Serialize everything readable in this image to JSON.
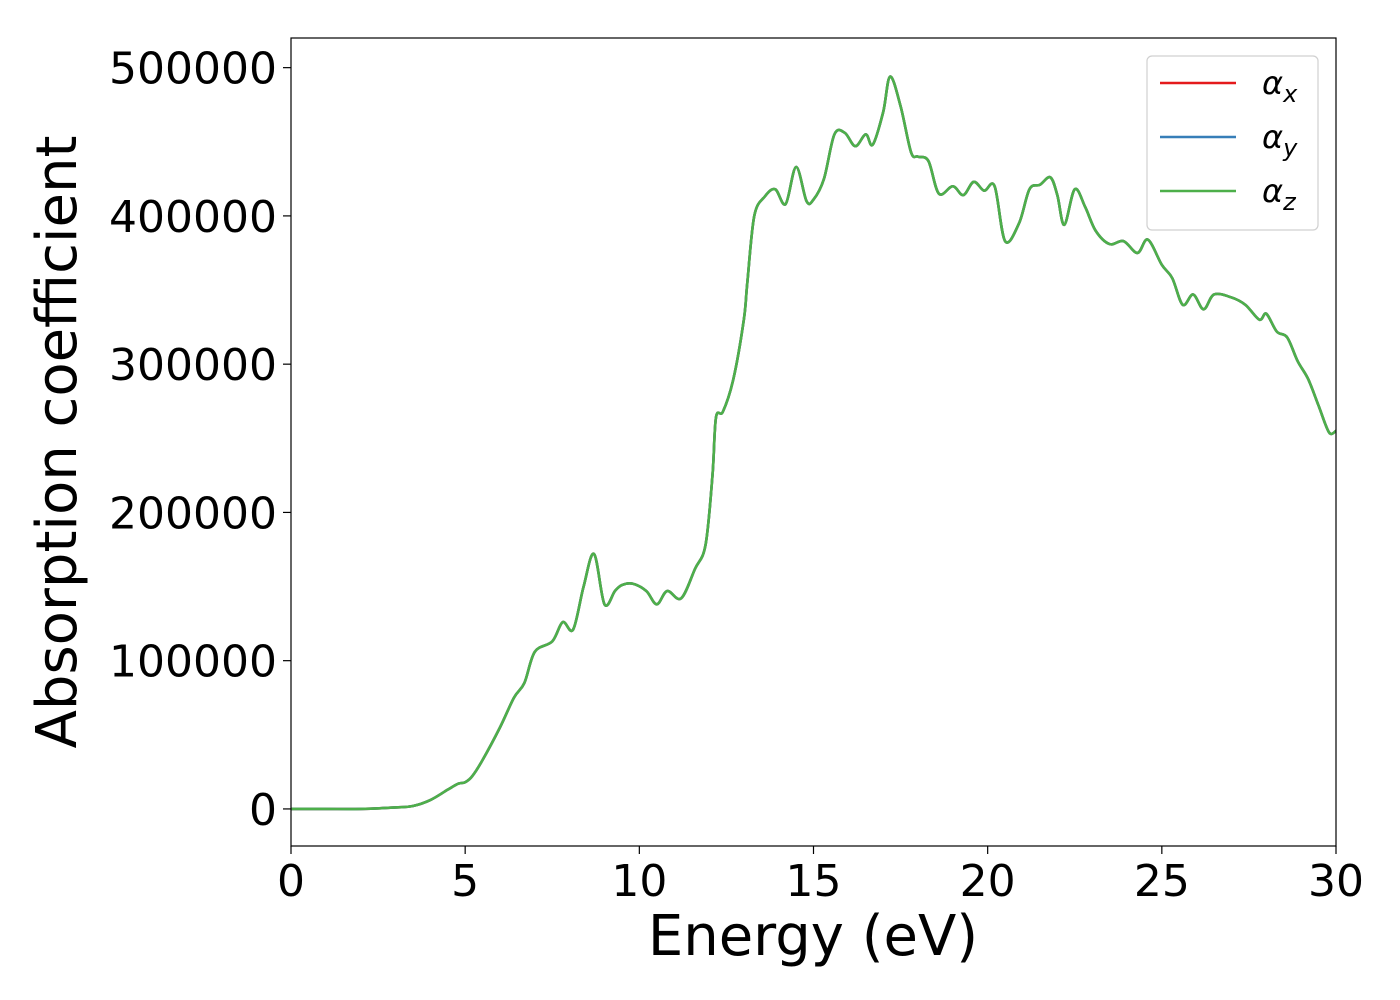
{
  "chart_data": {
    "type": "line",
    "xlabel": "Energy (eV)",
    "ylabel": "Absorption coefficient",
    "xlim": [
      0,
      30
    ],
    "ylim": [
      -25000,
      520000
    ],
    "xticks": [
      0,
      5,
      10,
      15,
      20,
      25,
      30
    ],
    "yticks": [
      0,
      100000,
      200000,
      300000,
      400000,
      500000
    ],
    "grid": false,
    "legend_position": "top-right",
    "x": [
      0,
      1,
      2,
      3,
      3.5,
      4,
      4.5,
      4.8,
      5.0,
      5.2,
      5.5,
      6.0,
      6.4,
      6.7,
      7.0,
      7.5,
      7.8,
      8.1,
      8.4,
      8.7,
      9.0,
      9.3,
      9.5,
      9.8,
      10.2,
      10.5,
      10.8,
      11.2,
      11.6,
      11.9,
      12.1,
      12.2,
      12.4,
      12.7,
      13.0,
      13.1,
      13.3,
      13.6,
      13.9,
      14.2,
      14.5,
      14.8,
      15.0,
      15.3,
      15.6,
      15.9,
      16.2,
      16.5,
      16.7,
      17.0,
      17.2,
      17.5,
      17.8,
      18.0,
      18.3,
      18.6,
      19.0,
      19.3,
      19.6,
      19.9,
      20.2,
      20.5,
      20.9,
      21.2,
      21.5,
      21.8,
      22.0,
      22.2,
      22.5,
      22.8,
      23.1,
      23.5,
      23.9,
      24.3,
      24.6,
      25.0,
      25.3,
      25.6,
      25.9,
      26.2,
      26.5,
      27.0,
      27.4,
      27.8,
      28.0,
      28.3,
      28.6,
      28.9,
      29.2,
      29.5,
      29.8,
      30.0
    ],
    "series": [
      {
        "name": "α_x",
        "color": "#e41a1c",
        "values": [
          0,
          0,
          0,
          1000,
          2000,
          6000,
          13000,
          17000,
          18000,
          22000,
          33000,
          55000,
          75000,
          85000,
          106000,
          113000,
          126000,
          121000,
          150000,
          172000,
          138000,
          147000,
          151000,
          152000,
          147000,
          138000,
          147000,
          142000,
          162000,
          178000,
          225000,
          264000,
          268000,
          290000,
          330000,
          355000,
          400000,
          413000,
          418000,
          408000,
          433000,
          410000,
          411000,
          425000,
          455000,
          456000,
          447000,
          455000,
          448000,
          470000,
          494000,
          474000,
          443000,
          440000,
          437000,
          415000,
          420000,
          414000,
          423000,
          417000,
          420000,
          383000,
          395000,
          418000,
          421000,
          426000,
          414000,
          394000,
          418000,
          406000,
          390000,
          381000,
          383000,
          375000,
          384000,
          367000,
          358000,
          340000,
          347000,
          337000,
          347000,
          345000,
          340000,
          330000,
          334000,
          322000,
          318000,
          302000,
          290000,
          272000,
          254000,
          255000
        ]
      },
      {
        "name": "α_y",
        "color": "#377eb8",
        "values": [
          0,
          0,
          0,
          1000,
          2000,
          6000,
          13000,
          17000,
          18000,
          22000,
          33000,
          55000,
          75000,
          85000,
          106000,
          113000,
          126000,
          121000,
          150000,
          172000,
          138000,
          147000,
          151000,
          152000,
          147000,
          138000,
          147000,
          142000,
          162000,
          178000,
          225000,
          264000,
          268000,
          290000,
          330000,
          355000,
          400000,
          413000,
          418000,
          408000,
          433000,
          410000,
          411000,
          425000,
          455000,
          456000,
          447000,
          455000,
          448000,
          470000,
          494000,
          474000,
          443000,
          440000,
          437000,
          415000,
          420000,
          414000,
          423000,
          417000,
          420000,
          383000,
          395000,
          418000,
          421000,
          426000,
          414000,
          394000,
          418000,
          406000,
          390000,
          381000,
          383000,
          375000,
          384000,
          367000,
          358000,
          340000,
          347000,
          337000,
          347000,
          345000,
          340000,
          330000,
          334000,
          322000,
          318000,
          302000,
          290000,
          272000,
          254000,
          255000
        ]
      },
      {
        "name": "α_z",
        "color": "#4daf4a",
        "values": [
          0,
          0,
          0,
          1000,
          2000,
          6000,
          13000,
          17000,
          18000,
          22000,
          33000,
          55000,
          75000,
          85000,
          106000,
          113000,
          126000,
          121000,
          150000,
          172000,
          138000,
          147000,
          151000,
          152000,
          147000,
          138000,
          147000,
          142000,
          162000,
          178000,
          225000,
          264000,
          268000,
          290000,
          330000,
          355000,
          400000,
          413000,
          418000,
          408000,
          433000,
          410000,
          411000,
          425000,
          455000,
          456000,
          447000,
          455000,
          448000,
          470000,
          494000,
          474000,
          443000,
          440000,
          437000,
          415000,
          420000,
          414000,
          423000,
          417000,
          420000,
          383000,
          395000,
          418000,
          421000,
          426000,
          414000,
          394000,
          418000,
          406000,
          390000,
          381000,
          383000,
          375000,
          384000,
          367000,
          358000,
          340000,
          347000,
          337000,
          347000,
          345000,
          340000,
          330000,
          334000,
          322000,
          318000,
          302000,
          290000,
          272000,
          254000,
          255000
        ]
      }
    ]
  }
}
